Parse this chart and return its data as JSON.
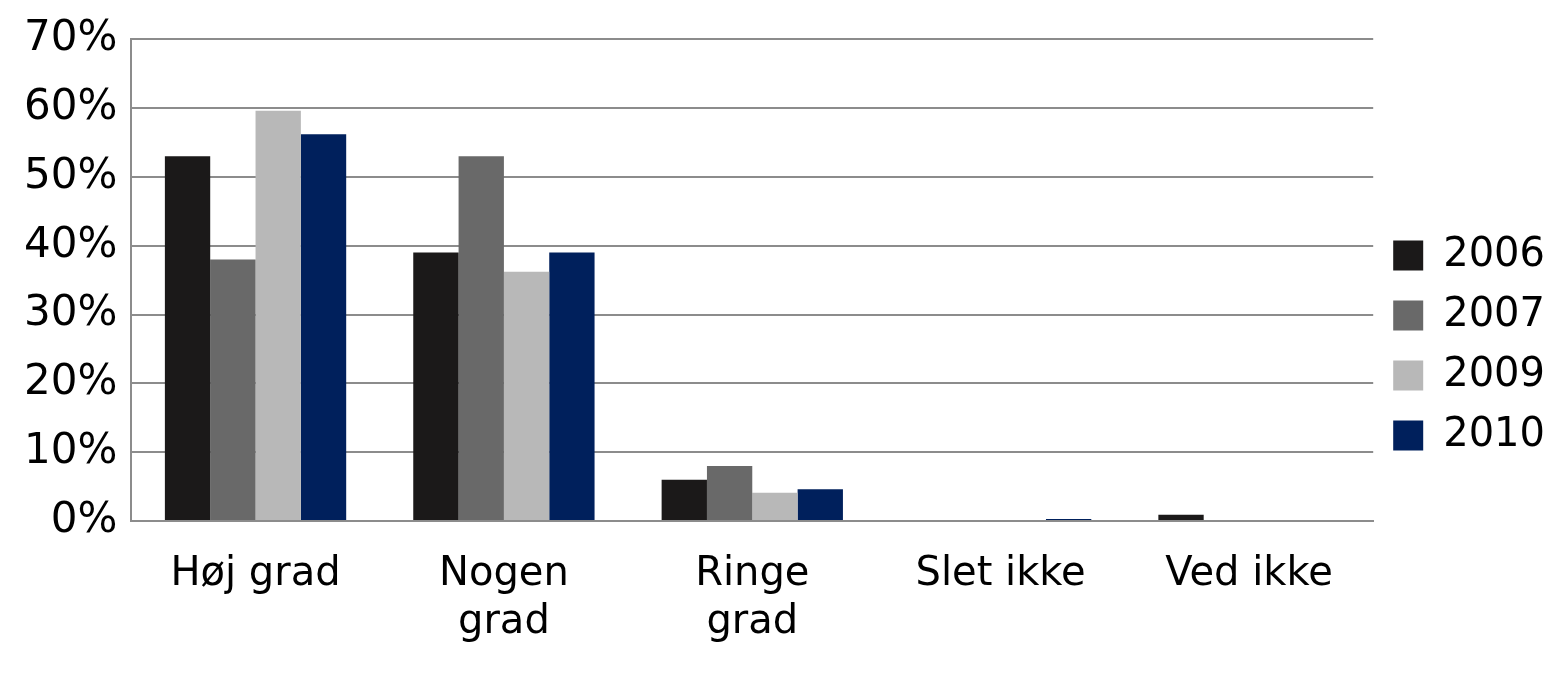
{
  "chart_data": {
    "type": "bar",
    "categories": [
      "Høj grad",
      "Nogen\ngrad",
      "Ringe\ngrad",
      "Slet ikke",
      "Ved ikke"
    ],
    "series": [
      {
        "name": "2006",
        "color": "#1b1919",
        "values": [
          53,
          39,
          6,
          0,
          0.9
        ]
      },
      {
        "name": "2007",
        "color": "#696969",
        "values": [
          38,
          53,
          8,
          0,
          0
        ]
      },
      {
        "name": "2009",
        "color": "#b8b8b8",
        "values": [
          59.6,
          36.2,
          4.1,
          0,
          0
        ]
      },
      {
        "name": "2010",
        "color": "#00205c",
        "values": [
          56.2,
          39,
          4.6,
          0.3,
          0
        ]
      }
    ],
    "ylim": [
      0,
      70
    ],
    "yticks": [
      {
        "value": 0,
        "label": "0%"
      },
      {
        "value": 10,
        "label": "10%"
      },
      {
        "value": 20,
        "label": "20%"
      },
      {
        "value": 30,
        "label": "30%"
      },
      {
        "value": 40,
        "label": "40%"
      },
      {
        "value": 50,
        "label": "50%"
      },
      {
        "value": 60,
        "label": "60%"
      },
      {
        "value": 70,
        "label": "70%"
      }
    ],
    "grid": "y",
    "legend": "right"
  }
}
